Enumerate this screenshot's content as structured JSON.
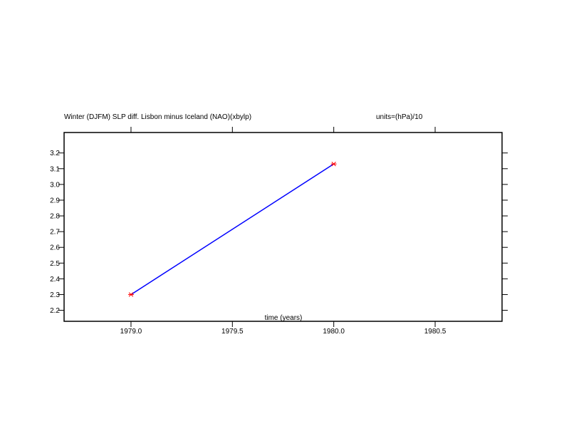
{
  "chart_data": {
    "type": "line",
    "title": "Winter (DJFM) SLP diff. Lisbon minus Iceland (NAO)(xbylp)",
    "units_label": "units=(hPa)/10",
    "xlabel": "time (years)",
    "ylabel": "",
    "xlim": [
      1978.67,
      1980.83
    ],
    "ylim": [
      2.13,
      3.33
    ],
    "x_ticks": [
      1979.0,
      1979.5,
      1980.0,
      1980.5
    ],
    "x_tick_labels": [
      "1979.0",
      "1979.5",
      "1980.0",
      "1980.5"
    ],
    "y_ticks": [
      2.2,
      2.3,
      2.4,
      2.5,
      2.6,
      2.7,
      2.8,
      2.9,
      3.0,
      3.1,
      3.2
    ],
    "y_tick_labels": [
      "2.2",
      "2.3",
      "2.4",
      "2.5",
      "2.6",
      "2.7",
      "2.8",
      "2.9",
      "3.0",
      "3.1",
      "3.2"
    ],
    "grid": false,
    "line_color": "#0000ff",
    "marker_color": "#ff0000",
    "series": [
      {
        "x": [
          1979.0,
          1980.0
        ],
        "y": [
          2.3,
          3.13
        ]
      }
    ]
  }
}
